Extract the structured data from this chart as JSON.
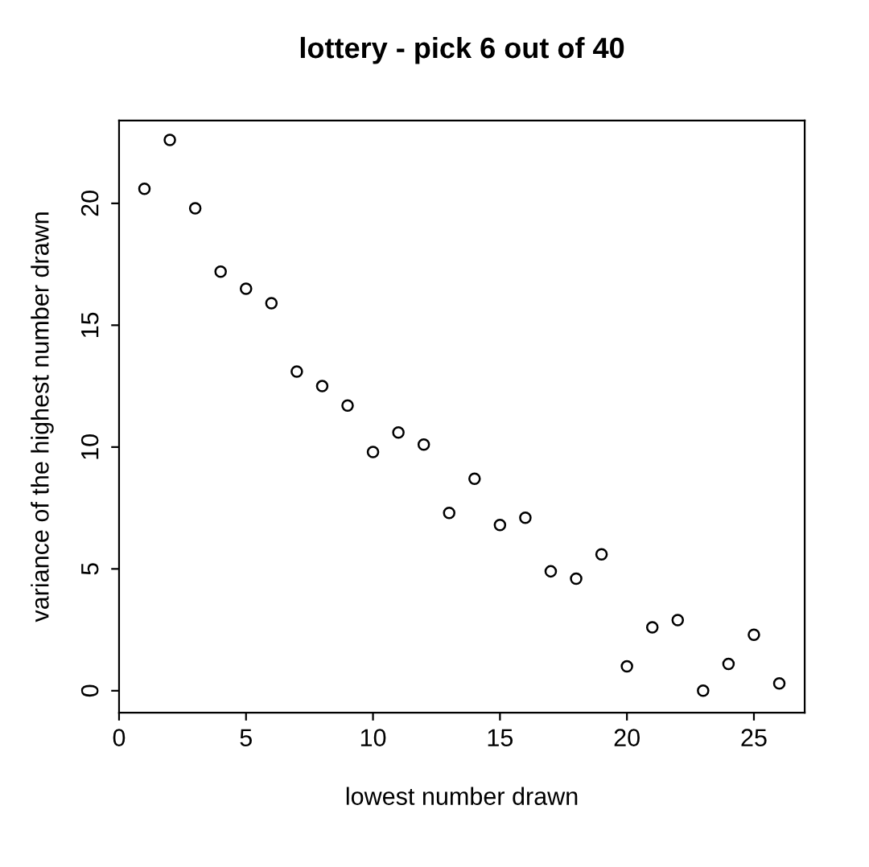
{
  "chart_data": {
    "type": "scatter",
    "title": "lottery - pick 6 out of 40",
    "xlabel": "lowest number drawn",
    "ylabel": "variance of the highest number drawn",
    "x": [
      1,
      2,
      3,
      4,
      5,
      6,
      7,
      8,
      9,
      10,
      11,
      12,
      13,
      14,
      15,
      16,
      17,
      18,
      19,
      20,
      21,
      22,
      23,
      24,
      25,
      26
    ],
    "values": [
      20.6,
      22.6,
      19.8,
      17.2,
      16.5,
      15.9,
      13.1,
      12.5,
      11.7,
      9.8,
      10.6,
      10.1,
      7.3,
      8.7,
      6.8,
      7.1,
      4.9,
      4.6,
      5.6,
      1.0,
      2.6,
      2.9,
      0.0,
      1.1,
      2.3,
      0.3
    ],
    "color": "#000000",
    "marker": "circle",
    "xlim": [
      0,
      27
    ],
    "ylim": [
      -0.9,
      23.4
    ],
    "xticks": [
      0,
      5,
      10,
      15,
      20,
      25
    ],
    "yticks": [
      0,
      5,
      10,
      15,
      20
    ],
    "grid": false,
    "legend": false
  }
}
